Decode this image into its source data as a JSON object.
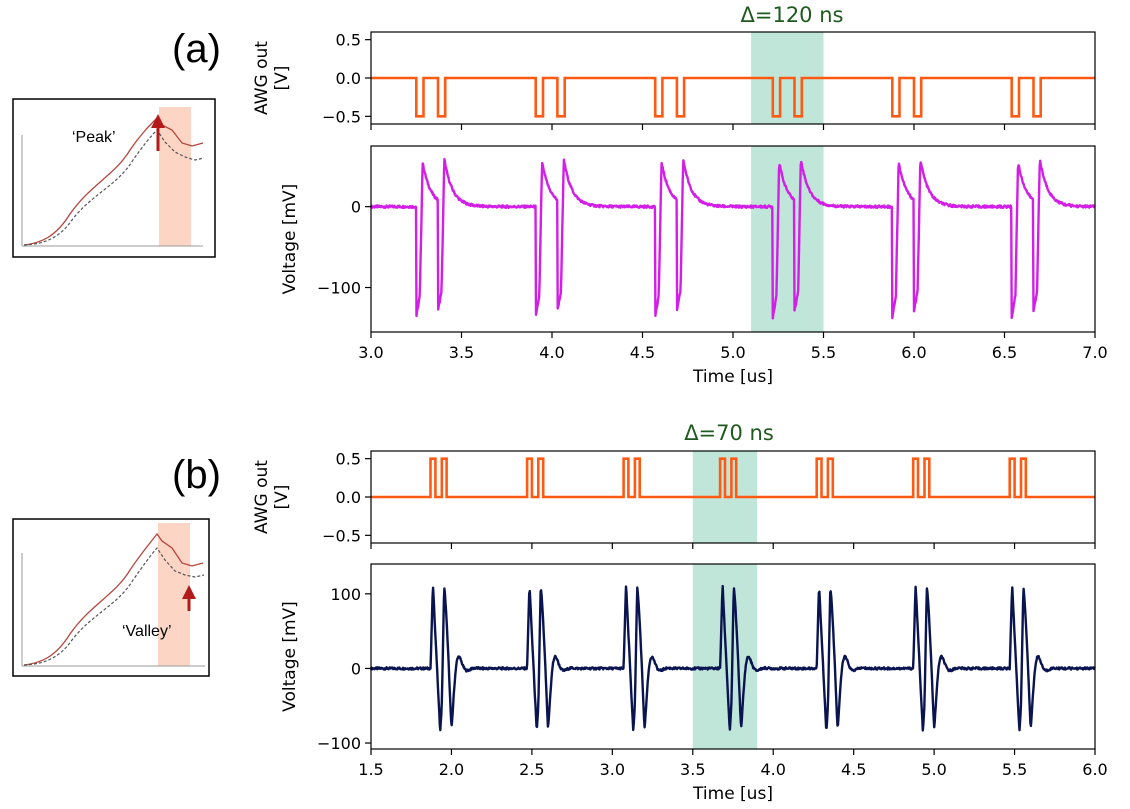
{
  "figure": {
    "panels": [
      {
        "id": "a",
        "letter": "(a)",
        "delta_label": "Δ=120 ns",
        "inset_label": "‘Peak’"
      },
      {
        "id": "b",
        "letter": "(b)",
        "delta_label": "Δ=70 ns",
        "inset_label": "‘Valley’"
      }
    ]
  },
  "colors": {
    "awg": "#ff5a14",
    "voltage_a": "#d21ee6",
    "voltage_b": "#0a1450",
    "highlight": "#bfe6d9",
    "inset_band": "#fcd5c4",
    "inset_curve": "#b5453d",
    "inset_dashed": "#555555",
    "arrow": "#b31b1b",
    "delta_text": "#1e5a1e"
  },
  "chart_data": [
    {
      "panel": "a",
      "subplot": "awg",
      "type": "line",
      "ylabel": "AWG out\n[V]",
      "xlabel": "",
      "xlim": [
        3.0,
        7.0
      ],
      "ylim": [
        -0.6,
        0.6
      ],
      "yticks": [
        0.5,
        0.0,
        -0.5
      ],
      "yticklabels": [
        "0.5",
        "0.0",
        "−0.5"
      ],
      "xticks": [
        3.0,
        3.5,
        4.0,
        4.5,
        5.0,
        5.5,
        6.0,
        6.5,
        7.0
      ],
      "baseline": 0.0,
      "pulse_level": -0.5,
      "pulse_starts": [
        3.25,
        3.91,
        4.57,
        5.22,
        5.88,
        6.54
      ],
      "pulse_separation": 0.12,
      "pulse_width": 0.04,
      "highlight": [
        5.1,
        5.5
      ]
    },
    {
      "panel": "a",
      "subplot": "voltage",
      "type": "line",
      "ylabel": "Voltage [mV]",
      "xlabel": "Time [us]",
      "xlim": [
        3.0,
        7.0
      ],
      "ylim": [
        -155,
        75
      ],
      "yticks": [
        0,
        -100
      ],
      "yticklabels": [
        "0",
        "−100"
      ],
      "xticks": [
        3.0,
        3.5,
        4.0,
        4.5,
        5.0,
        5.5,
        6.0,
        6.5,
        7.0
      ],
      "xticklabels": [
        "3.0",
        "3.5",
        "4.0",
        "4.5",
        "5.0",
        "5.5",
        "6.0",
        "6.5",
        "7.0"
      ],
      "response": "neg_spike",
      "min_mV": -137,
      "max_mV": 55,
      "highlight": [
        5.1,
        5.5
      ]
    },
    {
      "panel": "b",
      "subplot": "awg",
      "type": "line",
      "ylabel": "AWG out\n[V]",
      "xlabel": "",
      "xlim": [
        1.5,
        6.0
      ],
      "ylim": [
        -0.6,
        0.6
      ],
      "yticks": [
        0.5,
        0.0,
        -0.5
      ],
      "yticklabels": [
        "0.5",
        "0.0",
        "−0.5"
      ],
      "xticks": [
        1.5,
        2.0,
        2.5,
        3.0,
        3.5,
        4.0,
        4.5,
        5.0,
        5.5,
        6.0
      ],
      "baseline": 0.0,
      "pulse_level": 0.5,
      "pulse_starts": [
        1.87,
        2.47,
        3.07,
        3.67,
        4.27,
        4.87,
        5.47
      ],
      "pulse_separation": 0.07,
      "pulse_width": 0.03,
      "highlight": [
        3.5,
        3.9
      ]
    },
    {
      "panel": "b",
      "subplot": "voltage",
      "type": "line",
      "ylabel": "Voltage [mV]",
      "xlabel": "Time [us]",
      "xlim": [
        1.5,
        6.0
      ],
      "ylim": [
        -108,
        140
      ],
      "yticks": [
        100,
        0,
        -100
      ],
      "yticklabels": [
        "100",
        "0",
        "−100"
      ],
      "xticks": [
        1.5,
        2.0,
        2.5,
        3.0,
        3.5,
        4.0,
        4.5,
        5.0,
        5.5,
        6.0
      ],
      "xticklabels": [
        "1.5",
        "2.0",
        "2.5",
        "3.0",
        "3.5",
        "4.0",
        "4.5",
        "5.0",
        "5.5",
        "6.0"
      ],
      "response": "pos_ring",
      "min_mV": -85,
      "max_mV": 112,
      "highlight": [
        3.5,
        3.9
      ]
    }
  ]
}
